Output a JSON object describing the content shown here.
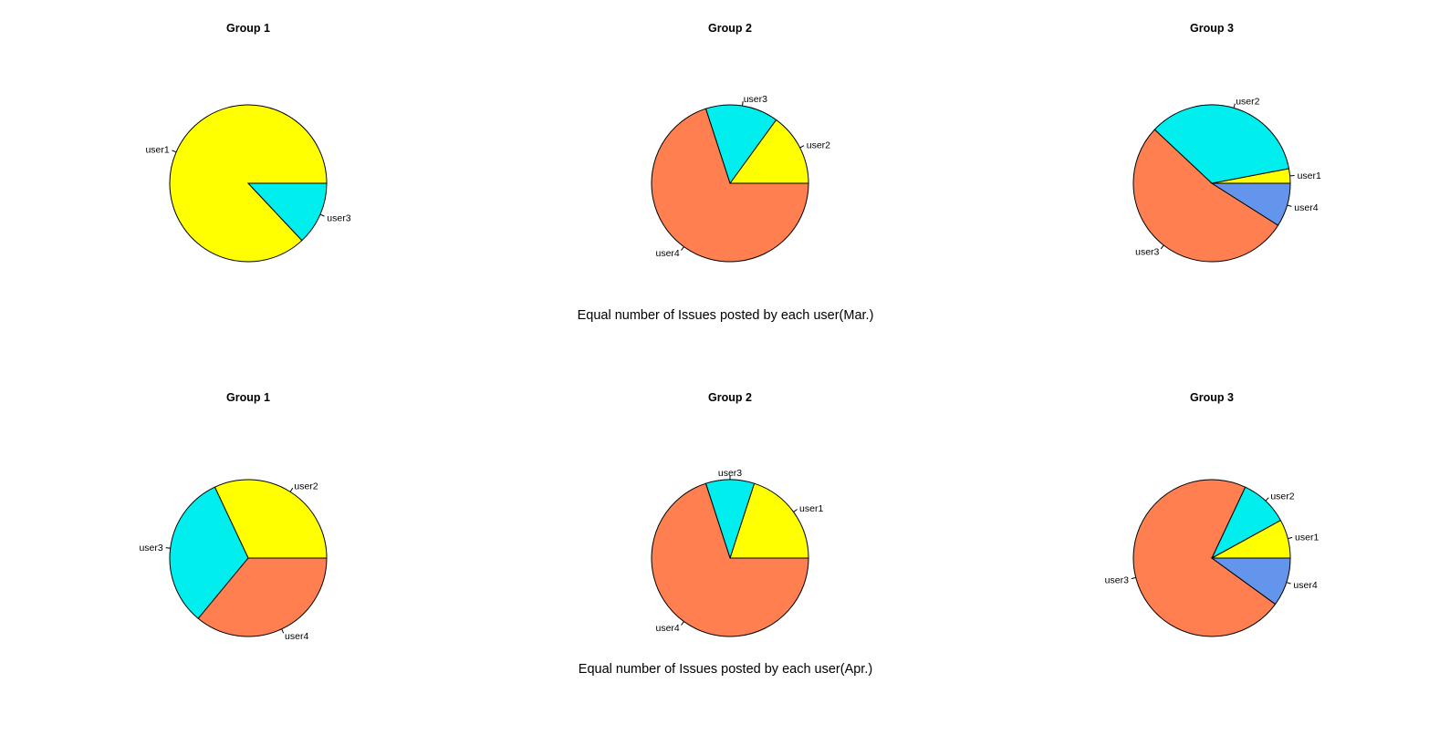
{
  "colors": {
    "user1": "#FFFF00",
    "user2": "#FFFF00",
    "cyan": "#00EEEE",
    "coral": "#FF7F50",
    "blue": "#6495ED"
  },
  "chart_data": [
    {
      "type": "pie",
      "title": "Group 1",
      "row_caption": "Equal number of Issues posted by each user(Mar.)",
      "slices": [
        {
          "label": "user1",
          "value": 87,
          "color": "#FFFF00"
        },
        {
          "label": "user3",
          "value": 13,
          "color": "#00EEEE"
        }
      ]
    },
    {
      "type": "pie",
      "title": "Group 2",
      "row_caption": "Equal number of Issues posted by each user(Mar.)",
      "slices": [
        {
          "label": "user2",
          "value": 15,
          "color": "#FFFF00"
        },
        {
          "label": "user3",
          "value": 15,
          "color": "#00EEEE"
        },
        {
          "label": "user4",
          "value": 70,
          "color": "#FF7F50"
        }
      ]
    },
    {
      "type": "pie",
      "title": "Group 3",
      "row_caption": "Equal number of Issues posted by each user(Mar.)",
      "slices": [
        {
          "label": "user1",
          "value": 3,
          "color": "#FFFF00"
        },
        {
          "label": "user2",
          "value": 35,
          "color": "#00EEEE"
        },
        {
          "label": "user3",
          "value": 53,
          "color": "#FF7F50"
        },
        {
          "label": "user4",
          "value": 9,
          "color": "#6495ED"
        }
      ]
    },
    {
      "type": "pie",
      "title": "Group 1",
      "row_caption": "Equal number of Issues posted by each user(Apr.)",
      "slices": [
        {
          "label": "user2",
          "value": 32,
          "color": "#FFFF00"
        },
        {
          "label": "user3",
          "value": 32,
          "color": "#00EEEE"
        },
        {
          "label": "user4",
          "value": 36,
          "color": "#FF7F50"
        }
      ]
    },
    {
      "type": "pie",
      "title": "Group 2",
      "row_caption": "Equal number of Issues posted by each user(Apr.)",
      "slices": [
        {
          "label": "user1",
          "value": 20,
          "color": "#FFFF00"
        },
        {
          "label": "user3",
          "value": 10,
          "color": "#00EEEE"
        },
        {
          "label": "user4",
          "value": 70,
          "color": "#FF7F50"
        }
      ]
    },
    {
      "type": "pie",
      "title": "Group 3",
      "row_caption": "Equal number of Issues posted by each user(Apr.)",
      "slices": [
        {
          "label": "user1",
          "value": 8,
          "color": "#FFFF00"
        },
        {
          "label": "user2",
          "value": 10,
          "color": "#00EEEE"
        },
        {
          "label": "user3",
          "value": 72,
          "color": "#FF7F50"
        },
        {
          "label": "user4",
          "value": 10,
          "color": "#6495ED"
        }
      ]
    }
  ],
  "captions": {
    "mar": "Equal number of Issues posted by each user(Mar.)",
    "apr": "Equal number of Issues posted by each user(Apr.)"
  }
}
